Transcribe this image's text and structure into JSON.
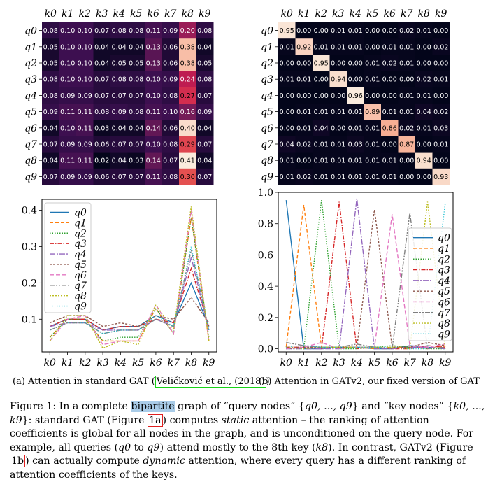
{
  "keys": [
    "k0",
    "k1",
    "k2",
    "k3",
    "k4",
    "k5",
    "k6",
    "k7",
    "k8",
    "k9"
  ],
  "queries": [
    "q0",
    "q1",
    "q2",
    "q3",
    "q4",
    "q5",
    "q6",
    "q7",
    "q8",
    "q9"
  ],
  "chart_data": [
    {
      "type": "heatmap",
      "x": [
        "k0",
        "k1",
        "k2",
        "k3",
        "k4",
        "k5",
        "k6",
        "k7",
        "k8",
        "k9"
      ],
      "y": [
        "q0",
        "q1",
        "q2",
        "q3",
        "q4",
        "q5",
        "q6",
        "q7",
        "q8",
        "q9"
      ],
      "values": [
        [
          0.08,
          0.1,
          0.1,
          0.07,
          0.08,
          0.08,
          0.11,
          0.09,
          0.2,
          0.08
        ],
        [
          0.05,
          0.1,
          0.1,
          0.04,
          0.04,
          0.04,
          0.13,
          0.06,
          0.38,
          0.04
        ],
        [
          0.05,
          0.1,
          0.1,
          0.04,
          0.05,
          0.05,
          0.13,
          0.06,
          0.38,
          0.05
        ],
        [
          0.08,
          0.1,
          0.1,
          0.07,
          0.08,
          0.08,
          0.1,
          0.09,
          0.24,
          0.08
        ],
        [
          0.08,
          0.09,
          0.09,
          0.07,
          0.07,
          0.07,
          0.1,
          0.08,
          0.27,
          0.07
        ],
        [
          0.09,
          0.11,
          0.11,
          0.08,
          0.09,
          0.08,
          0.11,
          0.1,
          0.16,
          0.09
        ],
        [
          0.04,
          0.1,
          0.11,
          0.03,
          0.04,
          0.04,
          0.14,
          0.06,
          0.4,
          0.04
        ],
        [
          0.07,
          0.09,
          0.09,
          0.06,
          0.07,
          0.07,
          0.1,
          0.08,
          0.29,
          0.07
        ],
        [
          0.04,
          0.11,
          0.11,
          0.02,
          0.04,
          0.03,
          0.14,
          0.07,
          0.41,
          0.04
        ],
        [
          0.07,
          0.09,
          0.09,
          0.06,
          0.07,
          0.07,
          0.11,
          0.08,
          0.3,
          0.07
        ]
      ],
      "color_scale": "rocket"
    },
    {
      "type": "heatmap",
      "x": [
        "k0",
        "k1",
        "k2",
        "k3",
        "k4",
        "k5",
        "k6",
        "k7",
        "k8",
        "k9"
      ],
      "y": [
        "q0",
        "q1",
        "q2",
        "q3",
        "q4",
        "q5",
        "q6",
        "q7",
        "q8",
        "q9"
      ],
      "values": [
        [
          0.95,
          0.0,
          0.0,
          0.01,
          0.01,
          0.0,
          0.0,
          0.02,
          0.01,
          0.0
        ],
        [
          0.01,
          0.92,
          0.01,
          0.01,
          0.01,
          0.0,
          0.01,
          0.01,
          0.0,
          0.02
        ],
        [
          0.0,
          0.0,
          0.95,
          0.0,
          0.0,
          0.01,
          0.02,
          0.01,
          0.0,
          0.0
        ],
        [
          0.01,
          0.01,
          0.0,
          0.94,
          0.0,
          0.01,
          0.0,
          0.0,
          0.02,
          0.01
        ],
        [
          0.0,
          0.0,
          0.0,
          0.0,
          0.96,
          0.0,
          0.0,
          0.01,
          0.01,
          0.0
        ],
        [
          0.0,
          0.01,
          0.01,
          0.01,
          0.01,
          0.89,
          0.01,
          0.01,
          0.04,
          0.02
        ],
        [
          0.0,
          0.01,
          0.04,
          0.0,
          0.01,
          0.01,
          0.86,
          0.02,
          0.01,
          0.03
        ],
        [
          0.04,
          0.02,
          0.01,
          0.01,
          0.03,
          0.01,
          0.0,
          0.87,
          0.0,
          0.01
        ],
        [
          0.01,
          0.0,
          0.01,
          0.01,
          0.01,
          0.01,
          0.01,
          0.0,
          0.94,
          0.0
        ],
        [
          0.01,
          0.02,
          0.01,
          0.01,
          0.01,
          0.01,
          0.01,
          0.0,
          0.0,
          0.93
        ]
      ],
      "color_scale": "rocket"
    },
    {
      "type": "line",
      "x": [
        "k0",
        "k1",
        "k2",
        "k3",
        "k4",
        "k5",
        "k6",
        "k7",
        "k8",
        "k9"
      ],
      "yticks": [
        0.1,
        0.2,
        0.3,
        0.4
      ],
      "ylim": [
        0.01,
        0.43
      ],
      "legend": "top-left",
      "series": [
        {
          "name": "q0",
          "values": [
            0.08,
            0.1,
            0.1,
            0.07,
            0.08,
            0.08,
            0.11,
            0.09,
            0.2,
            0.08
          ]
        },
        {
          "name": "q1",
          "values": [
            0.05,
            0.1,
            0.1,
            0.04,
            0.04,
            0.04,
            0.13,
            0.06,
            0.38,
            0.04
          ]
        },
        {
          "name": "q2",
          "values": [
            0.05,
            0.1,
            0.1,
            0.04,
            0.05,
            0.05,
            0.13,
            0.06,
            0.38,
            0.05
          ]
        },
        {
          "name": "q3",
          "values": [
            0.08,
            0.1,
            0.1,
            0.07,
            0.08,
            0.08,
            0.1,
            0.09,
            0.24,
            0.08
          ]
        },
        {
          "name": "q4",
          "values": [
            0.08,
            0.09,
            0.09,
            0.07,
            0.07,
            0.07,
            0.1,
            0.08,
            0.27,
            0.07
          ]
        },
        {
          "name": "q5",
          "values": [
            0.09,
            0.11,
            0.11,
            0.08,
            0.09,
            0.08,
            0.11,
            0.1,
            0.16,
            0.09
          ]
        },
        {
          "name": "q6",
          "values": [
            0.04,
            0.1,
            0.11,
            0.03,
            0.04,
            0.04,
            0.14,
            0.06,
            0.4,
            0.04
          ]
        },
        {
          "name": "q7",
          "values": [
            0.07,
            0.09,
            0.09,
            0.06,
            0.07,
            0.07,
            0.1,
            0.08,
            0.29,
            0.07
          ]
        },
        {
          "name": "q8",
          "values": [
            0.04,
            0.11,
            0.11,
            0.02,
            0.04,
            0.03,
            0.14,
            0.07,
            0.41,
            0.04
          ]
        },
        {
          "name": "q9",
          "values": [
            0.07,
            0.09,
            0.09,
            0.06,
            0.07,
            0.07,
            0.11,
            0.08,
            0.3,
            0.07
          ]
        }
      ]
    },
    {
      "type": "line",
      "x": [
        "k0",
        "k1",
        "k2",
        "k3",
        "k4",
        "k5",
        "k6",
        "k7",
        "k8",
        "k9"
      ],
      "yticks": [
        0.0,
        0.2,
        0.4,
        0.6,
        0.8,
        1.0
      ],
      "ylim": [
        -0.02,
        1.0
      ],
      "legend": "right",
      "series": [
        {
          "name": "q0",
          "values": [
            0.95,
            0.0,
            0.0,
            0.01,
            0.01,
            0.0,
            0.0,
            0.02,
            0.01,
            0.0
          ]
        },
        {
          "name": "q1",
          "values": [
            0.01,
            0.92,
            0.01,
            0.01,
            0.01,
            0.0,
            0.01,
            0.01,
            0.0,
            0.02
          ]
        },
        {
          "name": "q2",
          "values": [
            0.0,
            0.0,
            0.95,
            0.0,
            0.0,
            0.01,
            0.02,
            0.01,
            0.0,
            0.0
          ]
        },
        {
          "name": "q3",
          "values": [
            0.01,
            0.01,
            0.0,
            0.94,
            0.0,
            0.01,
            0.0,
            0.0,
            0.02,
            0.01
          ]
        },
        {
          "name": "q4",
          "values": [
            0.0,
            0.0,
            0.0,
            0.0,
            0.96,
            0.0,
            0.0,
            0.01,
            0.01,
            0.0
          ]
        },
        {
          "name": "q5",
          "values": [
            0.0,
            0.01,
            0.01,
            0.01,
            0.01,
            0.89,
            0.01,
            0.01,
            0.04,
            0.02
          ]
        },
        {
          "name": "q6",
          "values": [
            0.0,
            0.01,
            0.04,
            0.0,
            0.01,
            0.01,
            0.86,
            0.02,
            0.01,
            0.03
          ]
        },
        {
          "name": "q7",
          "values": [
            0.04,
            0.02,
            0.01,
            0.01,
            0.03,
            0.01,
            0.0,
            0.87,
            0.0,
            0.01
          ]
        },
        {
          "name": "q8",
          "values": [
            0.01,
            0.0,
            0.01,
            0.01,
            0.01,
            0.01,
            0.01,
            0.0,
            0.94,
            0.0
          ]
        },
        {
          "name": "q9",
          "values": [
            0.01,
            0.02,
            0.01,
            0.01,
            0.01,
            0.01,
            0.01,
            0.0,
            0.0,
            0.93
          ]
        }
      ]
    }
  ],
  "series_colors": [
    "#1f77b4",
    "#ff7f0e",
    "#2ca02c",
    "#d62728",
    "#9467bd",
    "#8c564b",
    "#e377c2",
    "#7f7f7f",
    "#bcbd22",
    "#17becf"
  ],
  "subcaption_a": {
    "text": "(a) Attention in standard GAT (",
    "cite_author": "Veličković et al.",
    "cite_year": "2018",
    "close": ")"
  },
  "subcaption_b": "(b) Attention in GATv2, our fixed version of GAT",
  "caption": {
    "p1": "Figure 1: In a complete ",
    "highlight": "bipartite",
    "p2": " graph of “query nodes” {",
    "m1": "q0, ..., q9",
    "p3": "} and “key nodes” {",
    "m2": "k0, ..., k9",
    "p4": "}: standard GAT (Figure ",
    "ref1": "1a",
    "p5": ") computes ",
    "em1": "static",
    "p6": " attention – the ranking of attention coefficients is global for all nodes in the graph, and is unconditioned on the query node. For example, all queries (",
    "m3": "q0",
    "p7": " to ",
    "m4": "q9",
    "p8": ") attend mostly to the 8th key (",
    "m5": "k8",
    "p9": "). In contrast, GATv2 (Figure ",
    "ref2": "1b",
    "p10": ") can actually compute ",
    "em2": "dynamic",
    "p11": " attention, where every query has a different ranking of attention coefficients of the keys."
  }
}
